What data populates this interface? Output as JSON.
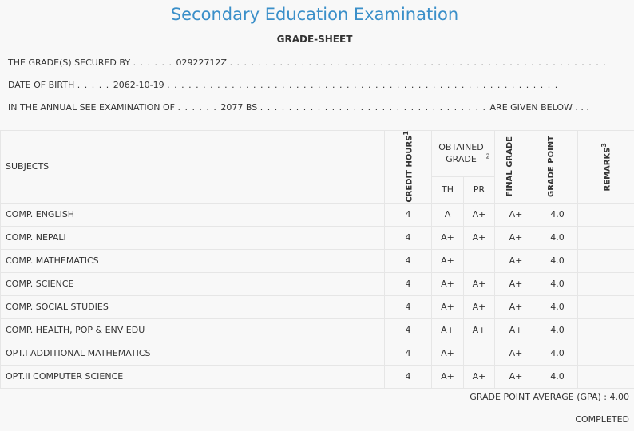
{
  "header": {
    "title": "Secondary Education Examination",
    "subtitle": "GRADE-SHEET"
  },
  "info": {
    "grades_label": "THE GRADE(S) SECURED BY",
    "symbol_number": "02922712Z",
    "dob_label": "DATE OF BIRTH",
    "dob": "2062-10-19",
    "exam_label": "IN THE ANNUAL SEE EXAMINATION OF",
    "exam_year": "2077 BS",
    "given_below": "ARE GIVEN BELOW . . ."
  },
  "table": {
    "headers": {
      "subjects": "SUBJECTS",
      "credit_hours": "CREDIT HOURS",
      "credit_sup": "1",
      "obtained_grade": "OBTAINED GRADE",
      "obtained_sup": "2",
      "th": "TH",
      "pr": "PR",
      "final_grade": "FINAL GRADE",
      "grade_point": "GRADE POINT",
      "remarks": "REMARKS",
      "remarks_sup": "3"
    },
    "rows": [
      {
        "subject": "COMP. ENGLISH",
        "credit": "4",
        "th": "A",
        "pr": "A+",
        "final": "A+",
        "gp": "4.0",
        "remarks": ""
      },
      {
        "subject": "COMP. NEPALI",
        "credit": "4",
        "th": "A+",
        "pr": "A+",
        "final": "A+",
        "gp": "4.0",
        "remarks": ""
      },
      {
        "subject": "COMP. MATHEMATICS",
        "credit": "4",
        "th": "A+",
        "pr": "",
        "final": "A+",
        "gp": "4.0",
        "remarks": ""
      },
      {
        "subject": "COMP. SCIENCE",
        "credit": "4",
        "th": "A+",
        "pr": "A+",
        "final": "A+",
        "gp": "4.0",
        "remarks": ""
      },
      {
        "subject": "COMP. SOCIAL STUDIES",
        "credit": "4",
        "th": "A+",
        "pr": "A+",
        "final": "A+",
        "gp": "4.0",
        "remarks": ""
      },
      {
        "subject": "COMP. HEALTH, POP & ENV EDU",
        "credit": "4",
        "th": "A+",
        "pr": "A+",
        "final": "A+",
        "gp": "4.0",
        "remarks": ""
      },
      {
        "subject": "OPT.I ADDITIONAL MATHEMATICS",
        "credit": "4",
        "th": "A+",
        "pr": "",
        "final": "A+",
        "gp": "4.0",
        "remarks": ""
      },
      {
        "subject": "OPT.II COMPUTER SCIENCE",
        "credit": "4",
        "th": "A+",
        "pr": "A+",
        "final": "A+",
        "gp": "4.0",
        "remarks": ""
      }
    ]
  },
  "footer": {
    "gpa_label": "GRADE POINT AVERAGE (GPA) :",
    "gpa_value": "4.00",
    "status": "COMPLETED"
  }
}
